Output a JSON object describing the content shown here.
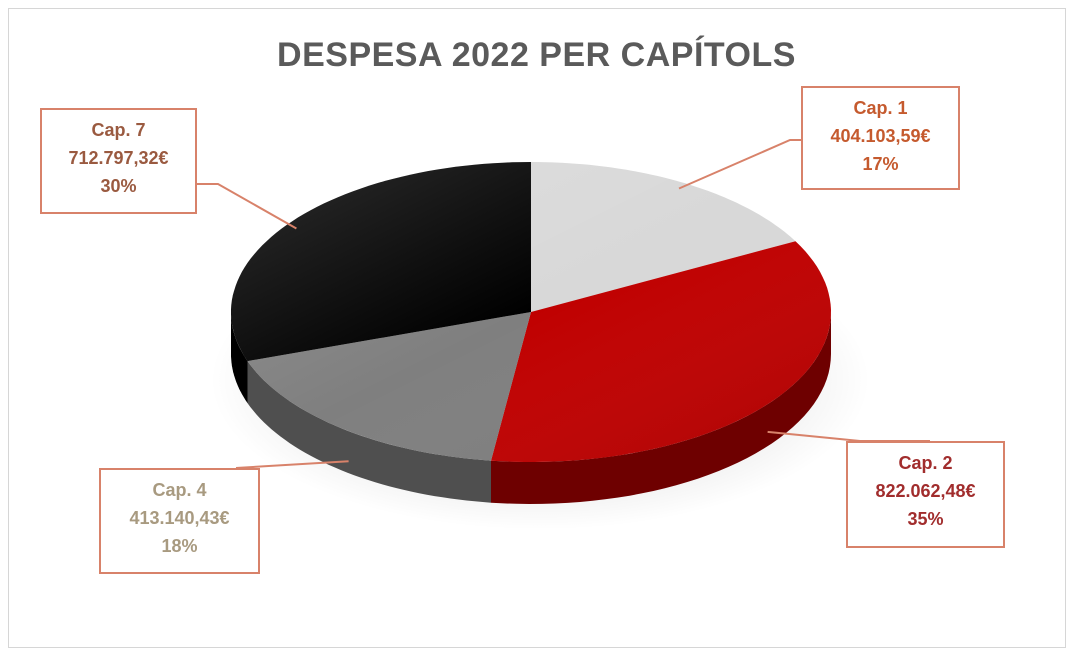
{
  "chart_data": {
    "type": "pie",
    "title": "DESPESA 2022 PER CAPÍTOLS",
    "slices": [
      {
        "name": "Cap. 1",
        "value_label": "404.103,59€",
        "percent_label": "17%",
        "value": 404103.59,
        "percent": 17,
        "color": "#d8d8d8",
        "side": "#a9a9a9",
        "label_color": "#c55a2e"
      },
      {
        "name": "Cap. 2",
        "value_label": "822.062,48€",
        "percent_label": "35%",
        "value": 822062.48,
        "percent": 35,
        "color": "#c00000",
        "side": "#6e0000",
        "label_color": "#a12d2d"
      },
      {
        "name": "Cap. 4",
        "value_label": "413.140,43€",
        "percent_label": "18%",
        "value": 413140.43,
        "percent": 18,
        "color": "#7f7f7f",
        "side": "#4f4f4f",
        "label_color": "#a89a80"
      },
      {
        "name": "Cap. 7",
        "value_label": "712.797,32€",
        "percent_label": "30%",
        "value": 712797.32,
        "percent": 30,
        "color": "#000000",
        "side": "#000000",
        "label_color": "#9a5a40"
      }
    ]
  }
}
